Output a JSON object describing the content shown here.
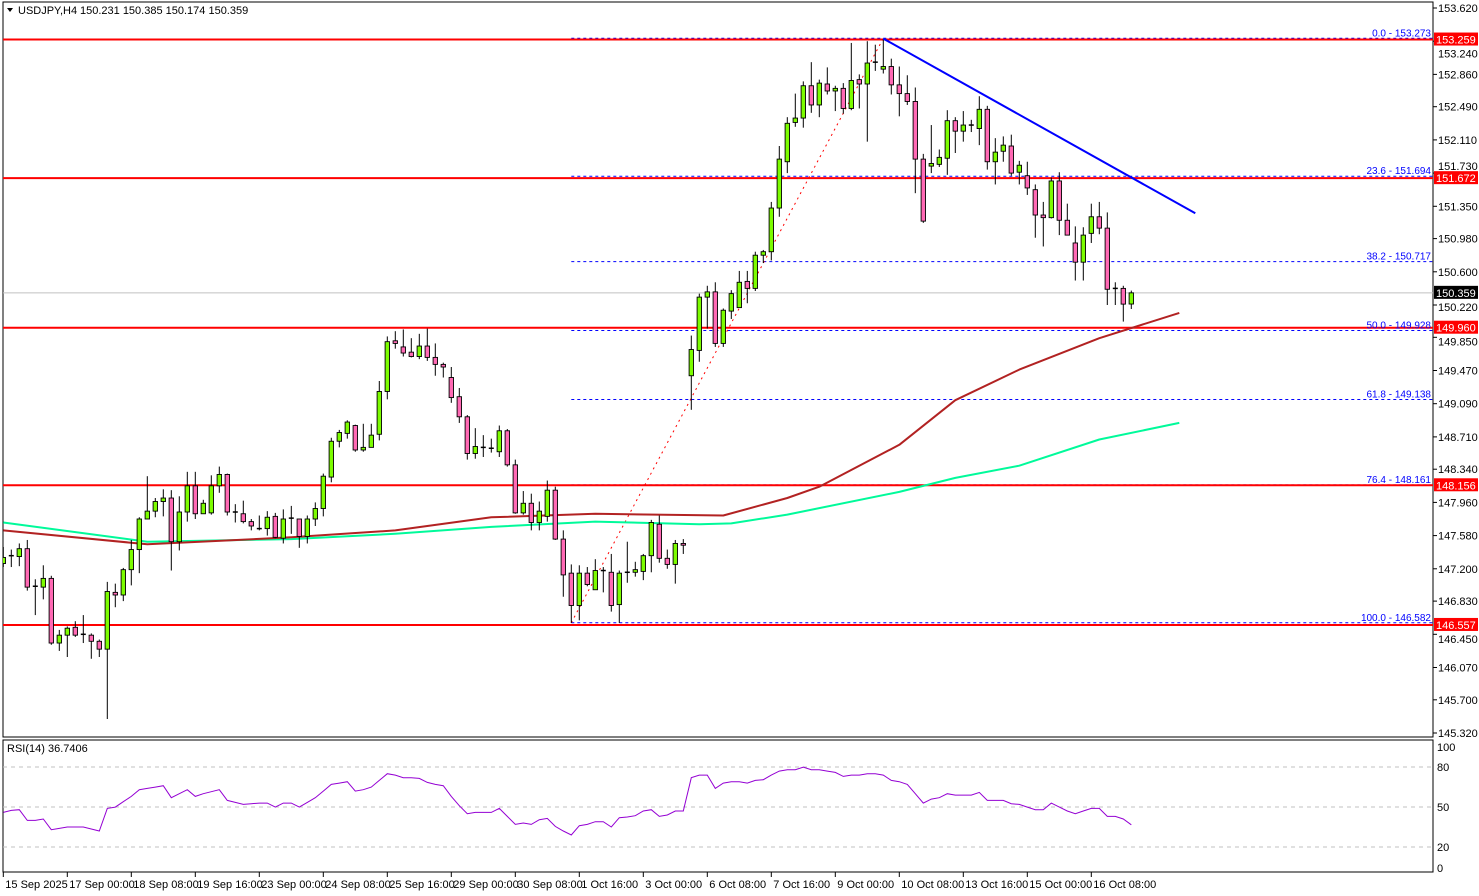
{
  "header": {
    "menu_icon": "triangle-down-icon",
    "symbol": "USDJPY,H4",
    "ohlc": "150.231 150.385 150.174 150.359"
  },
  "rsi_panel": {
    "label": "RSI(14) 36.7406",
    "levels": [
      "100",
      "80",
      "50",
      "20",
      "0"
    ]
  },
  "colors": {
    "bull_candle": "#7CFC00",
    "bear_candle": "#FF69B4",
    "level_line": "#FF0000",
    "fib_line": "#0000FF",
    "trendline": "#0000FF",
    "ma_slow": "#B22222",
    "ma_fast": "#00FA9A",
    "rsi_line": "#9400D3",
    "price_line": "#C0C0C0"
  },
  "chart_data": {
    "type": "candlestick",
    "symbol": "USDJPY",
    "timeframe": "H4",
    "ylim": [
      145.32,
      153.62
    ],
    "grid": false,
    "price_ticks": [
      "153.620",
      "153.240",
      "152.860",
      "152.490",
      "152.110",
      "151.730",
      "151.350",
      "150.980",
      "150.600",
      "150.220",
      "149.850",
      "149.470",
      "149.090",
      "148.710",
      "148.340",
      "147.960",
      "147.580",
      "147.200",
      "146.830",
      "146.450",
      "146.070",
      "145.700",
      "145.320"
    ],
    "date_ticks": [
      "15 Sep 2025",
      "17 Sep 00:00",
      "18 Sep 08:00",
      "19 Sep 16:00",
      "23 Sep 00:00",
      "24 Sep 08:00",
      "25 Sep 16:00",
      "29 Sep 00:00",
      "30 Sep 08:00",
      "1 Oct 16:00",
      "3 Oct 00:00",
      "6 Oct 08:00",
      "7 Oct 16:00",
      "9 Oct 00:00",
      "10 Oct 08:00",
      "13 Oct 16:00",
      "15 Oct 00:00",
      "16 Oct 08:00"
    ],
    "candles_ohlc": [
      [
        147.26,
        147.45,
        147.22,
        147.33
      ],
      [
        147.34,
        147.42,
        147.22,
        147.35
      ],
      [
        147.34,
        147.49,
        147.23,
        147.43
      ],
      [
        147.43,
        147.53,
        146.95,
        146.99
      ],
      [
        146.99,
        147.08,
        146.67,
        147.0
      ],
      [
        146.99,
        147.24,
        146.85,
        147.09
      ],
      [
        147.09,
        147.12,
        146.33,
        146.35
      ],
      [
        146.35,
        146.5,
        146.26,
        146.44
      ],
      [
        146.44,
        146.54,
        146.19,
        146.52
      ],
      [
        146.53,
        146.6,
        146.42,
        146.44
      ],
      [
        146.45,
        146.67,
        146.35,
        146.44
      ],
      [
        146.44,
        146.46,
        146.17,
        146.37
      ],
      [
        146.37,
        146.39,
        146.19,
        146.28
      ],
      [
        146.28,
        147.05,
        145.48,
        146.94
      ],
      [
        146.93,
        147.03,
        146.76,
        146.9
      ],
      [
        146.9,
        147.21,
        146.83,
        147.19
      ],
      [
        147.19,
        147.53,
        147.01,
        147.42
      ],
      [
        147.42,
        147.79,
        147.15,
        147.77
      ],
      [
        147.77,
        148.26,
        147.77,
        147.86
      ],
      [
        147.86,
        148.01,
        147.79,
        147.97
      ],
      [
        147.97,
        148.11,
        147.8,
        148.01
      ],
      [
        148.01,
        148.1,
        147.18,
        147.51
      ],
      [
        147.51,
        148.03,
        147.41,
        147.85
      ],
      [
        147.85,
        148.31,
        147.74,
        148.15
      ],
      [
        148.15,
        148.31,
        147.77,
        147.83
      ],
      [
        147.83,
        147.99,
        147.83,
        147.95
      ],
      [
        147.84,
        148.27,
        147.82,
        148.15
      ],
      [
        148.15,
        148.37,
        148.07,
        148.28
      ],
      [
        148.28,
        148.29,
        147.81,
        147.85
      ],
      [
        147.84,
        147.94,
        147.73,
        147.85
      ],
      [
        147.83,
        147.98,
        147.72,
        147.74
      ],
      [
        147.74,
        147.77,
        147.64,
        147.69
      ],
      [
        147.66,
        147.81,
        147.64,
        147.66
      ],
      [
        147.66,
        147.86,
        147.58,
        147.79
      ],
      [
        147.8,
        147.84,
        147.55,
        147.56
      ],
      [
        147.55,
        147.88,
        147.49,
        147.77
      ],
      [
        147.77,
        147.92,
        147.6,
        147.78
      ],
      [
        147.77,
        147.77,
        147.44,
        147.57
      ],
      [
        147.57,
        147.81,
        147.49,
        147.77
      ],
      [
        147.77,
        147.96,
        147.69,
        147.89
      ],
      [
        147.89,
        148.29,
        147.8,
        148.26
      ],
      [
        148.25,
        148.7,
        148.19,
        148.66
      ],
      [
        148.66,
        148.79,
        148.59,
        148.76
      ],
      [
        148.75,
        148.9,
        148.69,
        148.88
      ],
      [
        148.84,
        148.85,
        148.54,
        148.56
      ],
      [
        148.56,
        148.86,
        148.54,
        148.59
      ],
      [
        148.59,
        148.86,
        148.59,
        148.73
      ],
      [
        148.74,
        149.35,
        148.67,
        149.23
      ],
      [
        149.23,
        149.86,
        149.14,
        149.8
      ],
      [
        149.81,
        149.92,
        149.72,
        149.78
      ],
      [
        149.74,
        149.94,
        149.63,
        149.67
      ],
      [
        149.68,
        149.84,
        149.62,
        149.63
      ],
      [
        149.63,
        149.89,
        149.6,
        149.75
      ],
      [
        149.75,
        149.95,
        149.58,
        149.62
      ],
      [
        149.62,
        149.78,
        149.41,
        149.54
      ],
      [
        149.54,
        149.56,
        149.39,
        149.51
      ],
      [
        149.39,
        149.51,
        149.1,
        149.16
      ],
      [
        149.17,
        149.27,
        148.87,
        148.94
      ],
      [
        148.94,
        148.96,
        148.45,
        148.52
      ],
      [
        148.52,
        148.81,
        148.46,
        148.6
      ],
      [
        148.59,
        148.73,
        148.48,
        148.58
      ],
      [
        148.58,
        148.69,
        148.53,
        148.57
      ],
      [
        148.54,
        148.84,
        148.48,
        148.78
      ],
      [
        148.78,
        148.8,
        148.37,
        148.39
      ],
      [
        148.39,
        148.45,
        147.83,
        147.84
      ],
      [
        147.84,
        148.09,
        147.82,
        147.95
      ],
      [
        147.95,
        148.06,
        147.64,
        147.73
      ],
      [
        147.73,
        147.97,
        147.64,
        147.86
      ],
      [
        147.8,
        148.21,
        147.74,
        148.1
      ],
      [
        148.1,
        148.14,
        147.53,
        147.54
      ],
      [
        147.54,
        147.64,
        146.88,
        147.13
      ],
      [
        147.15,
        147.25,
        146.58,
        146.78
      ],
      [
        146.78,
        147.24,
        146.61,
        147.15
      ],
      [
        147.15,
        147.22,
        147.0,
        147.02
      ],
      [
        146.96,
        147.31,
        146.96,
        147.18
      ],
      [
        147.18,
        147.22,
        146.93,
        147.18
      ],
      [
        147.16,
        147.37,
        146.71,
        146.78
      ],
      [
        146.79,
        147.18,
        146.58,
        147.15
      ],
      [
        147.16,
        147.51,
        147.04,
        147.16
      ],
      [
        147.16,
        147.28,
        147.11,
        147.19
      ],
      [
        147.17,
        147.37,
        147.07,
        147.35
      ],
      [
        147.35,
        147.76,
        147.16,
        147.73
      ],
      [
        147.71,
        147.81,
        147.27,
        147.32
      ],
      [
        147.32,
        147.42,
        147.2,
        147.25
      ],
      [
        147.25,
        147.53,
        147.03,
        147.49
      ],
      [
        147.49,
        147.54,
        147.37,
        147.47
      ],
      [
        149.41,
        149.87,
        149.02,
        149.71
      ],
      [
        149.7,
        150.35,
        149.57,
        150.31
      ],
      [
        150.31,
        150.44,
        149.95,
        150.37
      ],
      [
        150.37,
        150.48,
        149.74,
        149.78
      ],
      [
        149.78,
        150.18,
        149.74,
        150.16
      ],
      [
        150.15,
        150.39,
        150.06,
        150.35
      ],
      [
        150.19,
        150.61,
        150.19,
        150.48
      ],
      [
        150.49,
        150.61,
        150.24,
        150.41
      ],
      [
        150.41,
        150.83,
        150.38,
        150.79
      ],
      [
        150.79,
        150.85,
        150.7,
        150.83
      ],
      [
        150.83,
        151.4,
        150.73,
        151.33
      ],
      [
        151.33,
        152.04,
        151.23,
        151.89
      ],
      [
        151.86,
        152.37,
        151.73,
        152.3
      ],
      [
        152.31,
        152.64,
        152.26,
        152.36
      ],
      [
        152.36,
        152.78,
        152.25,
        152.73
      ],
      [
        152.73,
        153.0,
        152.42,
        152.51
      ],
      [
        152.51,
        152.8,
        152.37,
        152.76
      ],
      [
        152.75,
        152.94,
        152.63,
        152.67
      ],
      [
        152.67,
        152.73,
        152.44,
        152.7
      ],
      [
        152.7,
        152.76,
        152.41,
        152.47
      ],
      [
        152.47,
        153.22,
        152.45,
        152.79
      ],
      [
        152.8,
        152.86,
        152.47,
        152.75
      ],
      [
        152.75,
        153.24,
        152.09,
        152.99
      ],
      [
        153.0,
        153.2,
        152.9,
        152.99
      ],
      [
        152.92,
        153.27,
        152.87,
        152.95
      ],
      [
        152.95,
        153.04,
        152.63,
        152.74
      ],
      [
        152.74,
        152.95,
        152.38,
        152.64
      ],
      [
        152.64,
        152.85,
        152.51,
        152.55
      ],
      [
        152.55,
        152.71,
        151.5,
        151.89
      ],
      [
        151.89,
        151.95,
        151.16,
        151.18
      ],
      [
        151.81,
        152.28,
        151.73,
        151.84
      ],
      [
        151.83,
        152.0,
        151.8,
        151.91
      ],
      [
        151.9,
        152.45,
        151.71,
        152.33
      ],
      [
        152.33,
        152.37,
        151.96,
        152.21
      ],
      [
        152.21,
        152.44,
        152.09,
        152.28
      ],
      [
        152.28,
        152.34,
        152.2,
        152.28
      ],
      [
        152.24,
        152.61,
        152.05,
        152.46
      ],
      [
        152.46,
        152.5,
        151.77,
        151.86
      ],
      [
        151.86,
        152.13,
        151.6,
        151.97
      ],
      [
        151.98,
        152.15,
        151.86,
        152.05
      ],
      [
        152.04,
        152.17,
        151.7,
        151.73
      ],
      [
        151.74,
        151.87,
        151.6,
        151.82
      ],
      [
        151.7,
        151.86,
        151.48,
        151.56
      ],
      [
        151.54,
        151.6,
        150.99,
        151.25
      ],
      [
        151.25,
        151.4,
        150.89,
        151.22
      ],
      [
        151.22,
        151.68,
        151.21,
        151.64
      ],
      [
        151.64,
        151.74,
        151.02,
        151.19
      ],
      [
        151.19,
        151.38,
        151.02,
        151.02
      ],
      [
        150.93,
        151.12,
        150.5,
        150.71
      ],
      [
        150.71,
        151.11,
        150.5,
        151.02
      ],
      [
        151.04,
        151.38,
        150.93,
        151.23
      ],
      [
        151.23,
        151.4,
        151.03,
        151.1
      ],
      [
        151.1,
        151.28,
        150.22,
        150.4
      ],
      [
        150.41,
        150.48,
        150.22,
        150.4
      ],
      [
        150.41,
        150.44,
        150.03,
        150.23
      ],
      [
        150.231,
        150.385,
        150.174,
        150.359
      ]
    ],
    "ma_slow_knots": [
      [
        1,
        147.64
      ],
      [
        19,
        147.48
      ],
      [
        37,
        147.56
      ],
      [
        50,
        147.64
      ],
      [
        62,
        147.79
      ],
      [
        75,
        147.83
      ],
      [
        91,
        147.81
      ],
      [
        99,
        148.01
      ],
      [
        103,
        148.14
      ],
      [
        113,
        148.62
      ],
      [
        120,
        149.13
      ],
      [
        128,
        149.48
      ],
      [
        138,
        149.84
      ],
      [
        148,
        150.13
      ]
    ],
    "ma_fast_knots": [
      [
        1,
        147.73
      ],
      [
        19,
        147.51
      ],
      [
        37,
        147.54
      ],
      [
        50,
        147.6
      ],
      [
        62,
        147.68
      ],
      [
        75,
        147.74
      ],
      [
        88,
        147.71
      ],
      [
        92,
        147.72
      ],
      [
        99,
        147.82
      ],
      [
        113,
        148.08
      ],
      [
        120,
        148.24
      ],
      [
        128,
        148.38
      ],
      [
        138,
        148.68
      ],
      [
        148,
        148.87
      ]
    ],
    "current_price": "150.359",
    "horizontal_levels": [
      "153.259",
      "151.672",
      "149.960",
      "148.156",
      "146.557"
    ],
    "fibonacci": {
      "from_candle": 72,
      "to_candle": 111,
      "levels": [
        {
          "label": "0.0 - 153.273",
          "price": 153.273
        },
        {
          "label": "23.6 - 151.694",
          "price": 151.694
        },
        {
          "label": "38.2 - 150.717",
          "price": 150.717
        },
        {
          "label": "50.0 - 149.928",
          "price": 149.928
        },
        {
          "label": "61.8 - 149.138",
          "price": 149.138
        },
        {
          "label": "76.4 - 148.161",
          "price": 148.161
        },
        {
          "label": "100.0 - 146.582",
          "price": 146.582
        }
      ]
    },
    "trendline": [
      [
        111,
        153.27
      ],
      [
        150,
        151.27
      ]
    ],
    "rsi": {
      "period": 14,
      "ylim": [
        0,
        100
      ],
      "levels": [
        80,
        50,
        20
      ],
      "values": [
        46,
        47.5,
        48,
        40,
        40,
        41,
        33,
        34,
        35,
        35,
        35,
        33.5,
        32,
        49,
        50,
        54,
        58,
        63,
        64,
        65,
        66,
        57,
        60,
        63,
        58,
        60,
        61.5,
        63,
        55,
        53.5,
        52,
        52.5,
        53,
        53,
        50,
        53,
        53,
        50,
        53.5,
        57,
        62,
        67,
        68,
        69,
        62,
        63,
        65,
        70,
        75,
        74,
        72,
        72,
        71.5,
        68.5,
        67,
        66,
        58,
        51,
        45,
        46,
        46,
        46,
        49,
        43,
        37,
        38,
        37,
        40.5,
        41.5,
        35.5,
        32,
        29,
        36,
        37,
        39,
        39,
        35,
        42,
        42.5,
        43.5,
        47,
        48,
        43,
        44,
        47,
        47,
        72,
        74,
        74,
        64,
        68,
        69,
        69,
        68,
        70,
        70.5,
        74,
        77,
        78,
        78,
        80,
        78,
        78,
        77,
        76,
        73,
        74,
        74,
        75,
        75,
        74,
        70,
        69,
        67,
        60,
        53,
        56,
        57,
        60,
        59,
        59,
        59,
        61,
        55,
        55,
        55,
        52.5,
        52,
        50,
        48,
        48,
        53,
        50,
        47,
        45,
        47,
        49,
        49,
        43,
        43,
        41,
        36.7
      ]
    }
  }
}
